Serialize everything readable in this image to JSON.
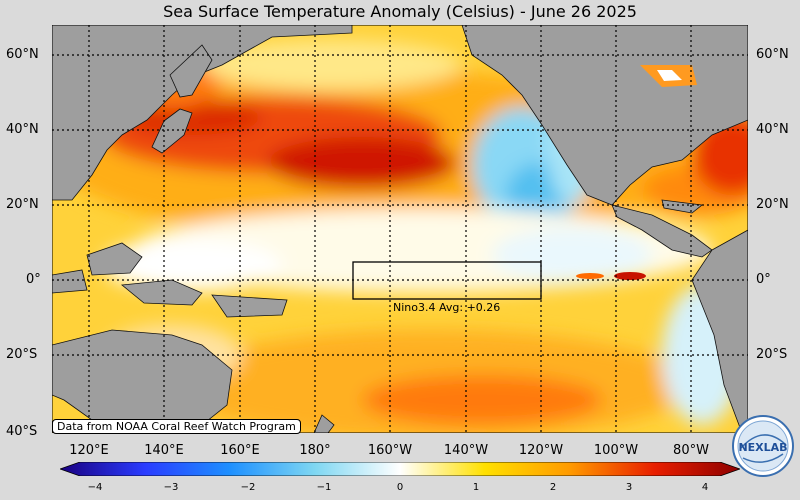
{
  "title": "Sea Surface Temperature Anomaly (Celsius) - June 26 2025",
  "lat_labels": [
    "60°N",
    "40°N",
    "20°N",
    "0°",
    "20°S",
    "40°S"
  ],
  "lon_labels": [
    "120°E",
    "140°E",
    "160°E",
    "180°",
    "160°W",
    "140°W",
    "120°W",
    "100°W",
    "80°W"
  ],
  "credit": "Data from NOAA Coral Reef Watch Program",
  "nino": {
    "label": "Nino3.4 Avg",
    "value": "+0.26"
  },
  "colorbar": {
    "ticks": [
      "−4",
      "−3",
      "−2",
      "−1",
      "0",
      "1",
      "2",
      "3",
      "4"
    ],
    "min": -4,
    "max": 4,
    "colors": [
      "#1a0080",
      "#2a3cff",
      "#1e90ff",
      "#7fd7f2",
      "#ffffff",
      "#ffe000",
      "#ff9a00",
      "#e81e00",
      "#8c0000"
    ]
  },
  "colors": {
    "land": "#9e9e9e",
    "background": "#dadada"
  },
  "logo": {
    "text": "NEXLAB"
  }
}
